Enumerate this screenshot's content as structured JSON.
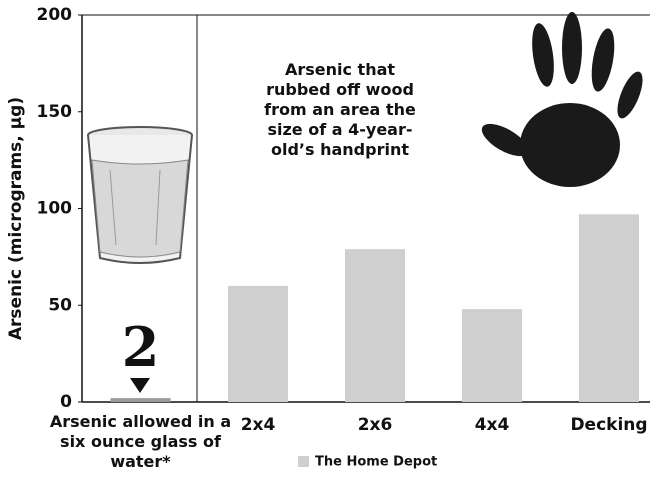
{
  "chart_data": {
    "type": "bar",
    "annotation": "Arsenic that rubbed off wood from an area the size of a 4-year-old’s handprint",
    "y_label": "Arsenic (micrograms, µg)",
    "categories": [
      "Arsenic allowed in a six ounce glass of water*",
      "2x4",
      "2x6",
      "4x4",
      "Decking"
    ],
    "series": [
      {
        "name": "The Home Depot",
        "color": "#cfcfcf",
        "values": [
          2,
          60,
          79,
          48,
          97
        ],
        "colors": [
          "#9a9a9a",
          "#cfcfcf",
          "#cfcfcf",
          "#cfcfcf",
          "#cfcfcf"
        ]
      }
    ],
    "ylim": [
      0,
      200
    ],
    "yticks": [
      0,
      50,
      100,
      150,
      200
    ],
    "grid": false
  }
}
